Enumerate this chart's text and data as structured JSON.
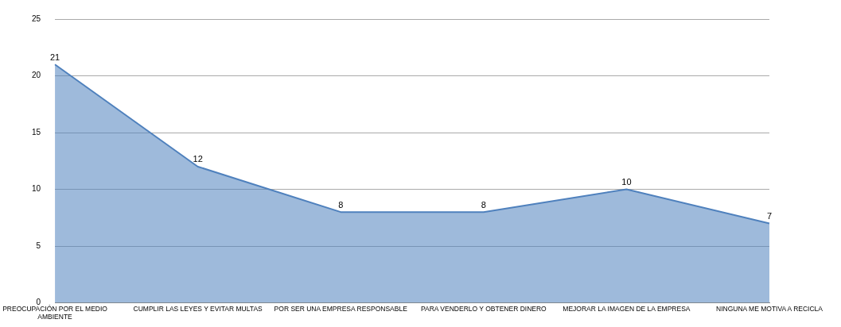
{
  "chart_data": {
    "type": "area",
    "categories": [
      [
        "PREOCUPACIÓN POR EL MEDIO",
        "AMBIENTE"
      ],
      "CUMPLIR LAS LEYES Y EVITAR MULTAS",
      "POR SER UNA EMPRESA RESPONSABLE",
      "PARA VENDERLO Y OBTENER DINERO",
      "MEJORAR LA IMAGEN DE LA EMPRESA",
      "NINGUNA ME MOTIVA A RECICLA"
    ],
    "values": [
      21,
      12,
      8,
      8,
      10,
      7
    ],
    "color": "#4f81bd",
    "ylim": [
      0,
      25
    ],
    "yticks": [
      0,
      5,
      10,
      15,
      20,
      25
    ],
    "grid": "y",
    "data_labels": true,
    "legend": false
  }
}
